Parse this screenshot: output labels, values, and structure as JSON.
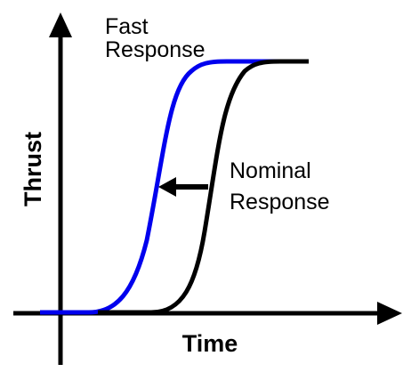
{
  "x_axis_label": "Time",
  "y_axis_label": "Thrust",
  "curves": [
    {
      "label_lines": [
        "Fast",
        "Response"
      ]
    },
    {
      "label_lines": [
        "Nominal",
        "Response"
      ]
    }
  ]
}
